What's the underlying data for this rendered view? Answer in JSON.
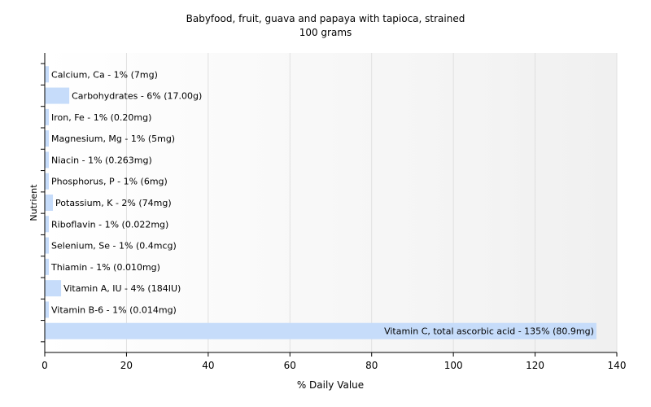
{
  "chart_data": {
    "type": "bar",
    "orientation": "horizontal",
    "title": "Babyfood, fruit, guava and papaya with tapioca, strained",
    "subtitle": "100 grams",
    "xlabel": "% Daily Value",
    "ylabel": "Nutrient",
    "xlim": [
      0,
      140
    ],
    "xticks": [
      "0",
      "20",
      "40",
      "60",
      "80",
      "100",
      "120",
      "140"
    ],
    "grid": true,
    "categories": [
      "Calcium, Ca",
      "Carbohydrates",
      "Iron, Fe",
      "Magnesium, Mg",
      "Niacin",
      "Phosphorus, P",
      "Potassium, K",
      "Riboflavin",
      "Selenium, Se",
      "Thiamin",
      "Vitamin A, IU",
      "Vitamin B-6",
      "Vitamin C, total ascorbic acid"
    ],
    "values": [
      1,
      6,
      1,
      1,
      1,
      1,
      2,
      1,
      1,
      1,
      4,
      1,
      135
    ],
    "labels": [
      "Calcium, Ca - 1% (7mg)",
      "Carbohydrates - 6% (17.00g)",
      "Iron, Fe - 1% (0.20mg)",
      "Magnesium, Mg - 1% (5mg)",
      "Niacin - 1% (0.263mg)",
      "Phosphorus, P - 1% (6mg)",
      "Potassium, K - 2% (74mg)",
      "Riboflavin - 1% (0.022mg)",
      "Selenium, Se - 1% (0.4mcg)",
      "Thiamin - 1% (0.010mg)",
      "Vitamin A, IU - 4% (184IU)",
      "Vitamin B-6 - 1% (0.014mg)",
      "Vitamin C, total ascorbic acid - 135% (80.9mg)"
    ],
    "bar_color": "#c6dcfa",
    "grid_color": "#e0e0e0",
    "background_gradient": [
      "#ffffff",
      "#f0f0f0"
    ]
  }
}
